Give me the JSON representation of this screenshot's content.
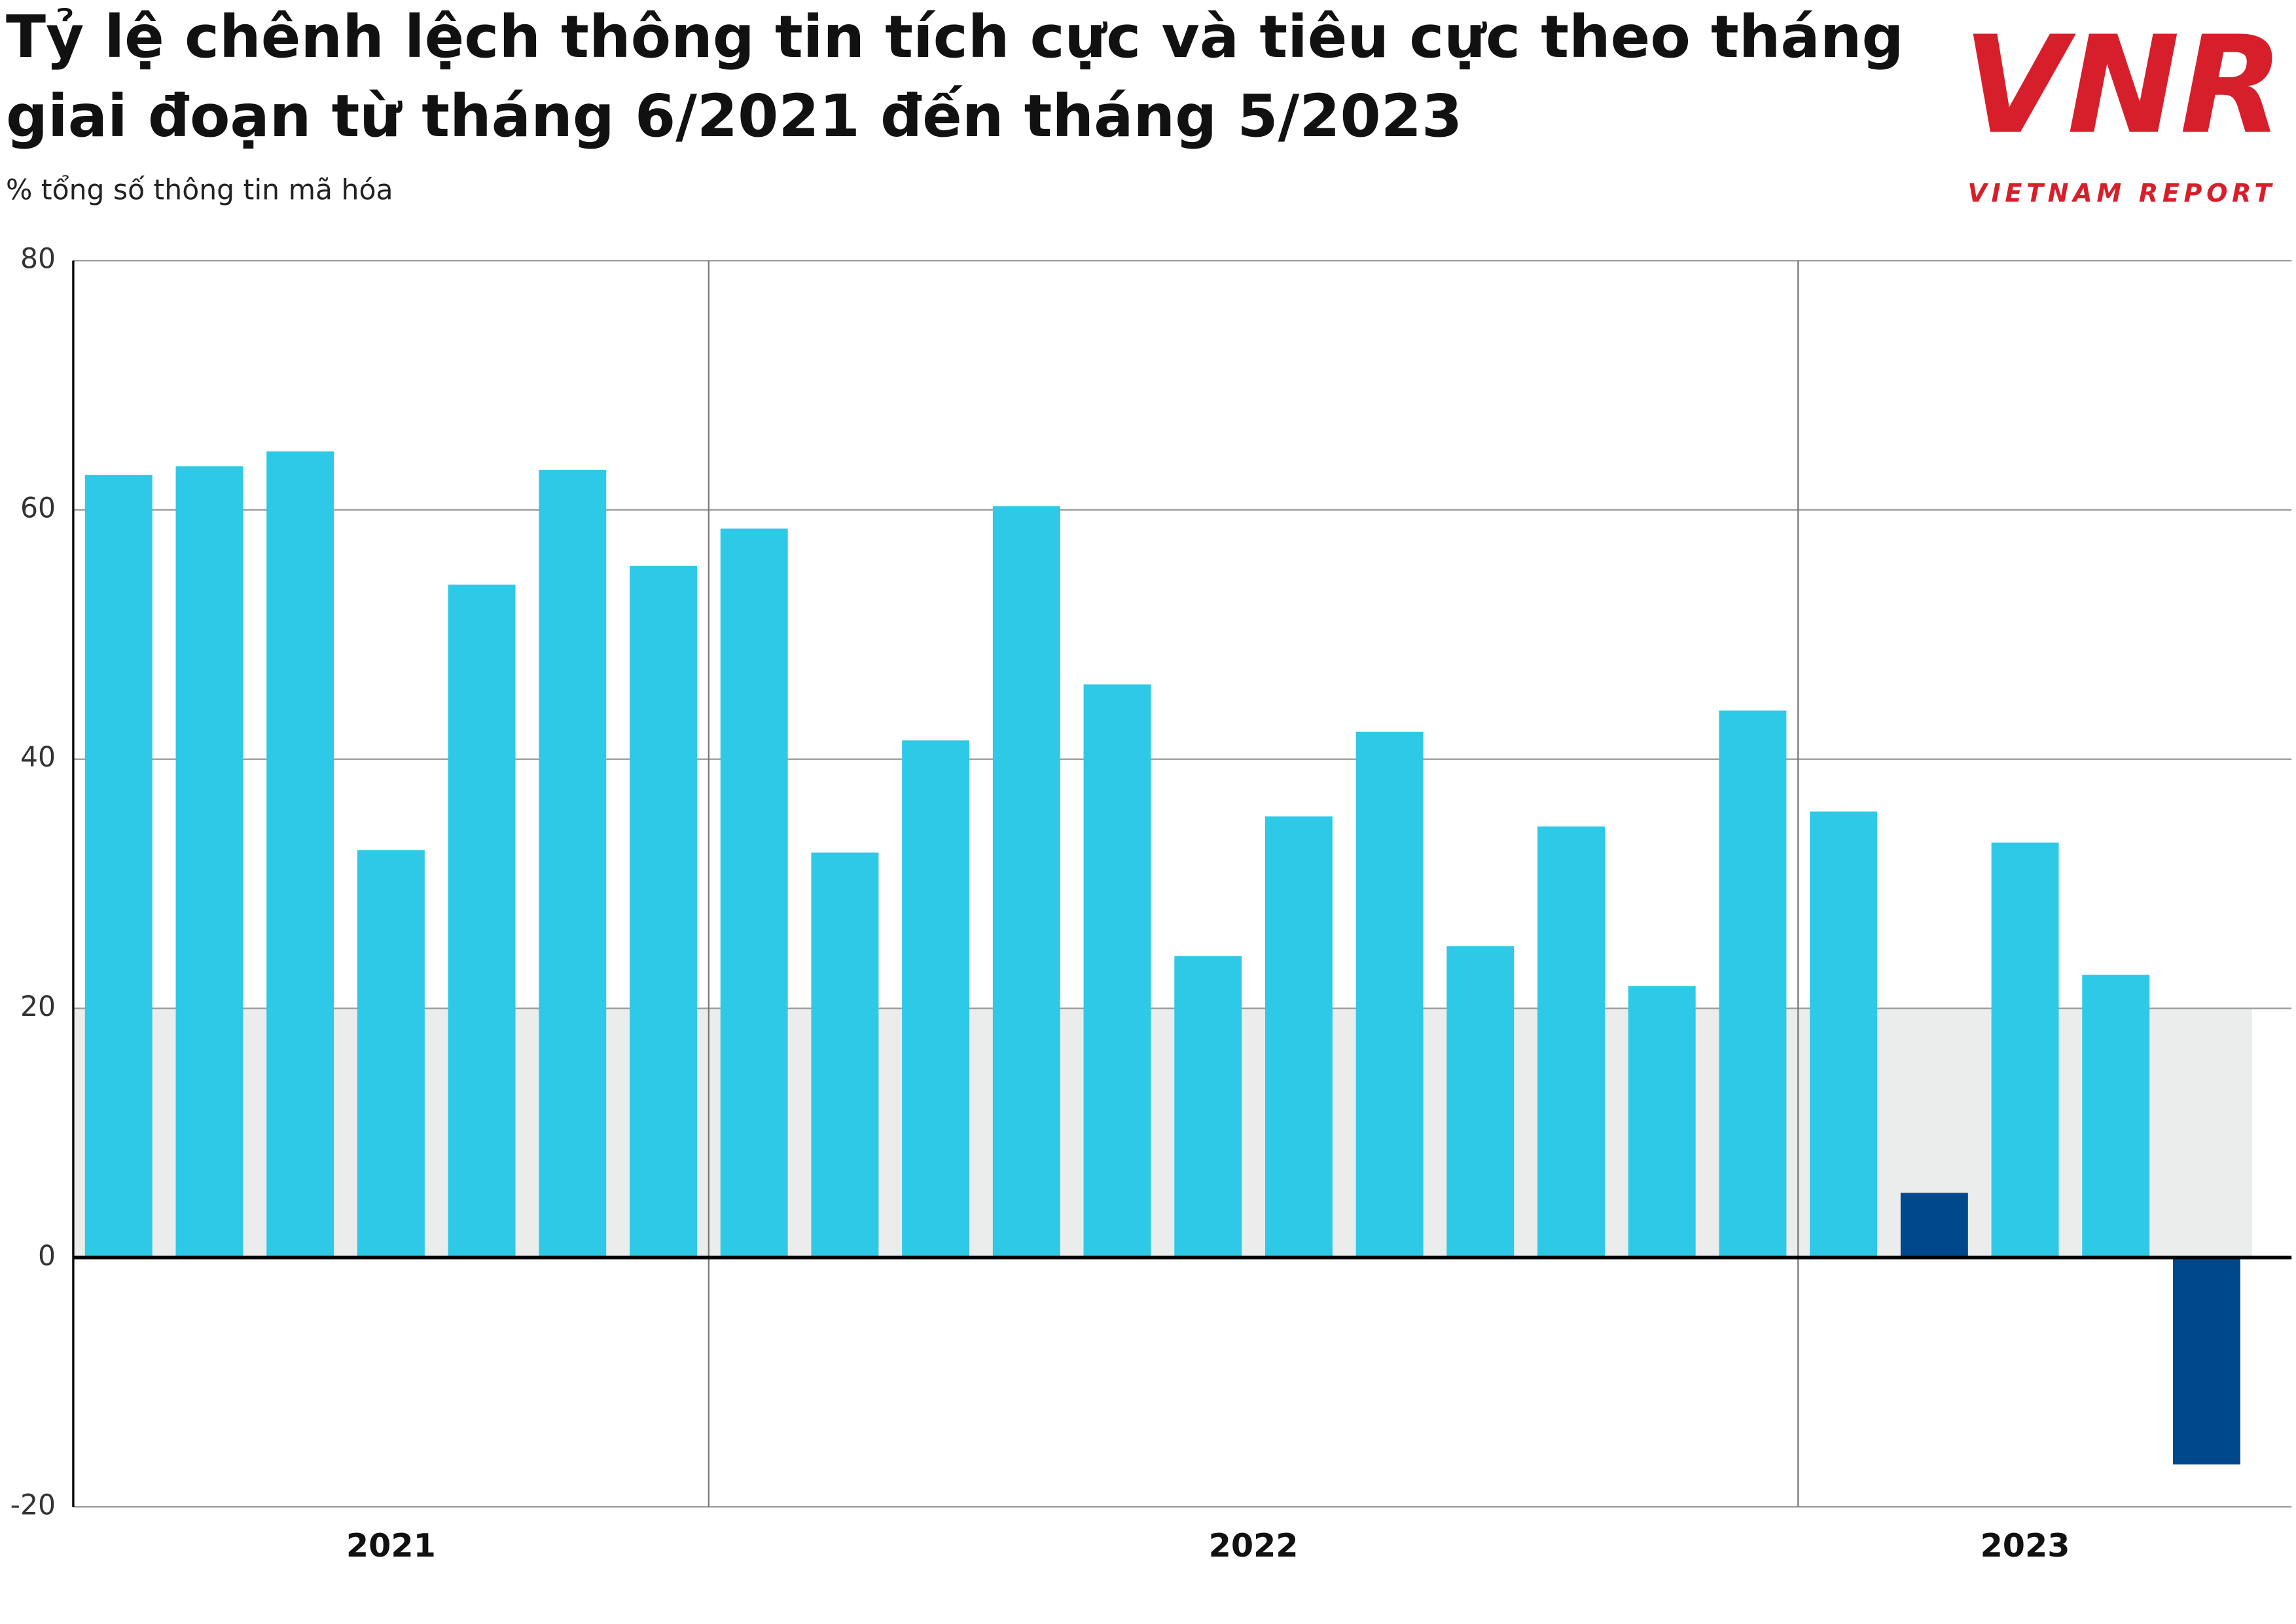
{
  "chart_data": {
    "type": "bar",
    "title": [
      "Tỷ lệ chênh lệch thông tin tích cực và tiêu cực theo tháng",
      "giai đoạn từ tháng 6/2021 đến tháng 5/2023"
    ],
    "subtitle": "% tổng số thông tin mã hóa",
    "logo": {
      "mark": "VNR",
      "text": "VIETNAM REPORT"
    },
    "categories": [
      null,
      null,
      null,
      null,
      null,
      null,
      null,
      null,
      null,
      null,
      null,
      null,
      null,
      null,
      null,
      null,
      null,
      null,
      null,
      null,
      null,
      null,
      null,
      null
    ],
    "values": [
      62.8,
      63.5,
      64.7,
      32.7,
      54,
      63.2,
      55.5,
      58.5,
      32.5,
      41.5,
      60.3,
      46,
      24.2,
      35.4,
      42.2,
      25,
      34.6,
      21.8,
      43.9,
      35.8,
      5.2,
      33.3,
      22.7,
      -16.6
    ],
    "colors": [
      "#2ec9e6",
      "#2ec9e6",
      "#2ec9e6",
      "#2ec9e6",
      "#2ec9e6",
      "#2ec9e6",
      "#2ec9e6",
      "#2ec9e6",
      "#2ec9e6",
      "#2ec9e6",
      "#2ec9e6",
      "#2ec9e6",
      "#2ec9e6",
      "#2ec9e6",
      "#2ec9e6",
      "#2ec9e6",
      "#2ec9e6",
      "#2ec9e6",
      "#2ec9e6",
      "#2ec9e6",
      "#00488c",
      "#2ec9e6",
      "#2ec9e6",
      "#00488c"
    ],
    "year_groups": [
      {
        "label": "2021",
        "start": 0,
        "end": 6
      },
      {
        "label": "2022",
        "start": 7,
        "end": 18
      },
      {
        "label": "2023",
        "start": 19,
        "end": 23
      }
    ],
    "band": [
      0,
      20
    ],
    "band_color": "#ebecec",
    "ylim": [
      -20,
      80
    ],
    "yticks": [
      -20,
      0,
      20,
      40,
      60,
      80
    ],
    "grid": true
  }
}
